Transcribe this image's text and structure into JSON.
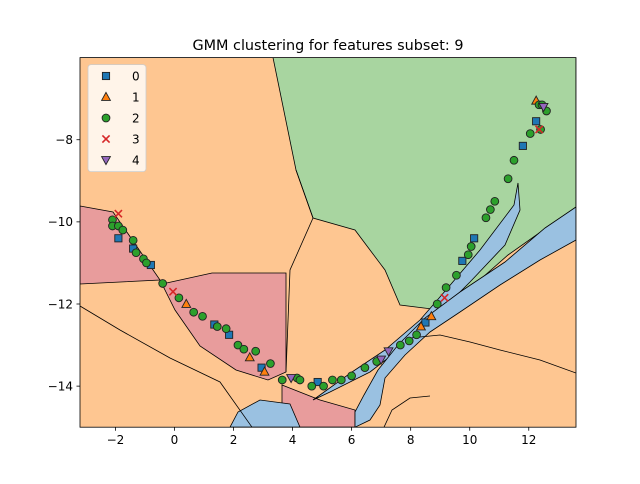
{
  "chart_data": {
    "type": "scatter",
    "title": "GMM clustering for features subset: 9",
    "xlabel": "",
    "ylabel": "",
    "xlim": [
      -3.2,
      13.6
    ],
    "ylim": [
      -15.0,
      -6.0
    ],
    "xticks": [
      -2,
      0,
      2,
      4,
      6,
      8,
      10,
      12
    ],
    "yticks": [
      -14,
      -12,
      -10,
      -8
    ],
    "x_tick_labels": [
      "−2",
      "0",
      "2",
      "4",
      "6",
      "8",
      "10",
      "12"
    ],
    "y_tick_labels": [
      "−14",
      "−12",
      "−10",
      "−8"
    ],
    "grid": false,
    "legend_position": "top-left",
    "colors": {
      "region0": "#9ac1e1",
      "region1": "#fec691",
      "region2": "#a8d5a0",
      "region3": "#e89c9c",
      "marker0": "#1f77b4",
      "marker1": "#ff7f0e",
      "marker2": "#2ca02c",
      "marker3": "#d62728",
      "marker4": "#9467bd"
    },
    "series": [
      {
        "name": "0",
        "marker": "square",
        "points": [
          [
            -1.9,
            -10.4
          ],
          [
            -1.4,
            -10.65
          ],
          [
            -0.8,
            -11.05
          ],
          [
            1.35,
            -12.5
          ],
          [
            1.85,
            -12.75
          ],
          [
            2.95,
            -13.55
          ],
          [
            4.85,
            -13.9
          ],
          [
            8.5,
            -12.45
          ],
          [
            9.75,
            -10.95
          ],
          [
            10.15,
            -10.4
          ],
          [
            11.8,
            -8.15
          ],
          [
            12.25,
            -7.55
          ]
        ]
      },
      {
        "name": "1",
        "marker": "triangle-up",
        "points": [
          [
            0.4,
            -12.0
          ],
          [
            2.55,
            -13.3
          ],
          [
            3.05,
            -13.65
          ],
          [
            8.35,
            -12.55
          ],
          [
            8.7,
            -12.3
          ],
          [
            12.25,
            -7.05
          ]
        ]
      },
      {
        "name": "2",
        "marker": "circle",
        "points": [
          [
            -2.1,
            -9.95
          ],
          [
            -2.1,
            -10.1
          ],
          [
            -1.9,
            -10.1
          ],
          [
            -1.75,
            -10.2
          ],
          [
            -1.4,
            -10.45
          ],
          [
            -1.3,
            -10.75
          ],
          [
            -1.05,
            -10.9
          ],
          [
            -0.95,
            -11.0
          ],
          [
            -0.4,
            -11.5
          ],
          [
            0.15,
            -11.85
          ],
          [
            0.65,
            -12.2
          ],
          [
            0.95,
            -12.3
          ],
          [
            1.45,
            -12.55
          ],
          [
            1.75,
            -12.6
          ],
          [
            2.15,
            -13.0
          ],
          [
            2.35,
            -13.1
          ],
          [
            2.75,
            -13.15
          ],
          [
            3.25,
            -13.45
          ],
          [
            3.65,
            -13.85
          ],
          [
            4.15,
            -13.8
          ],
          [
            4.25,
            -13.85
          ],
          [
            4.65,
            -14.0
          ],
          [
            5.05,
            -14.0
          ],
          [
            5.35,
            -13.85
          ],
          [
            5.65,
            -13.85
          ],
          [
            6.0,
            -13.75
          ],
          [
            6.45,
            -13.55
          ],
          [
            6.85,
            -13.4
          ],
          [
            7.65,
            -13.0
          ],
          [
            7.95,
            -12.9
          ],
          [
            8.2,
            -12.75
          ],
          [
            8.9,
            -12.0
          ],
          [
            9.2,
            -11.6
          ],
          [
            9.55,
            -11.3
          ],
          [
            9.95,
            -10.8
          ],
          [
            10.05,
            -10.6
          ],
          [
            10.55,
            -9.9
          ],
          [
            10.7,
            -9.7
          ],
          [
            10.85,
            -9.5
          ],
          [
            11.3,
            -8.95
          ],
          [
            11.5,
            -8.5
          ],
          [
            12.05,
            -7.85
          ],
          [
            12.35,
            -7.15
          ],
          [
            12.45,
            -7.15
          ],
          [
            12.6,
            -7.3
          ],
          [
            12.4,
            -7.75
          ]
        ]
      },
      {
        "name": "3",
        "marker": "x",
        "points": [
          [
            -1.9,
            -9.8
          ],
          [
            -0.05,
            -11.7
          ],
          [
            9.15,
            -11.85
          ],
          [
            12.35,
            -7.75
          ]
        ]
      },
      {
        "name": "4",
        "marker": "triangle-down",
        "points": [
          [
            3.95,
            -13.8
          ],
          [
            7.0,
            -13.35
          ],
          [
            7.25,
            -13.15
          ],
          [
            12.5,
            -7.2
          ]
        ]
      }
    ]
  }
}
